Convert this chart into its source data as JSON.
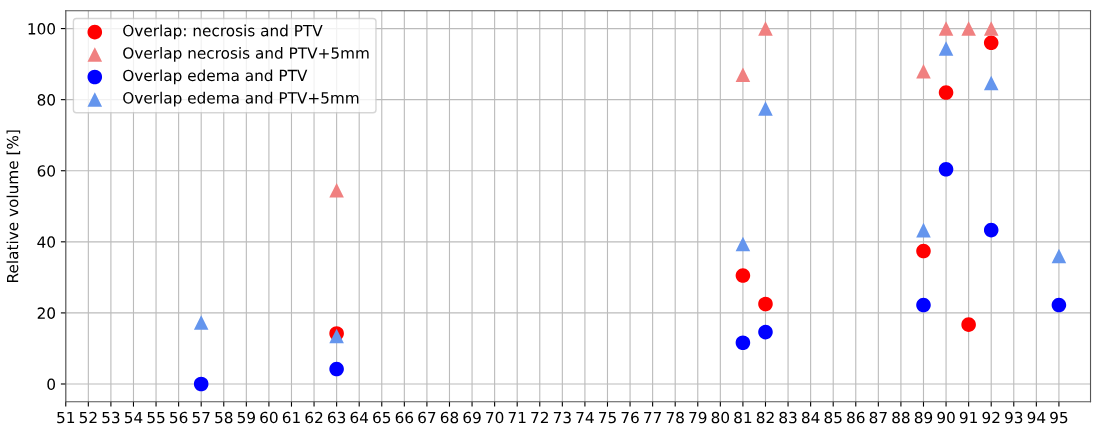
{
  "chart_data": {
    "type": "scatter",
    "ylabel": "Relative volume [%]",
    "xlim": [
      51,
      96.4
    ],
    "xticks": [
      51,
      52,
      53,
      54,
      55,
      56,
      57,
      58,
      59,
      60,
      61,
      62,
      63,
      64,
      65,
      66,
      67,
      68,
      69,
      70,
      71,
      72,
      73,
      74,
      75,
      76,
      77,
      78,
      79,
      80,
      81,
      82,
      83,
      84,
      85,
      86,
      87,
      88,
      89,
      90,
      91,
      92,
      93,
      94,
      95
    ],
    "ylim": [
      -5,
      105
    ],
    "yticks": [
      0,
      20,
      40,
      60,
      80,
      100
    ],
    "grid": true,
    "legend": "top left",
    "series": [
      {
        "name": "Overlap: necrosis and PTV",
        "color": "#ff0000",
        "marker": "circle",
        "x": [
          63,
          81,
          82,
          89,
          90,
          91,
          92
        ],
        "values": [
          14.2,
          30.5,
          22.5,
          37.4,
          82,
          16.7,
          96
        ]
      },
      {
        "name": "Overlap necrosis and PTV+5mm",
        "color": "#f08080",
        "marker": "triangle",
        "x": [
          63,
          81,
          82,
          89,
          90,
          91,
          92
        ],
        "values": [
          54.5,
          87,
          100,
          88,
          100,
          100,
          100
        ]
      },
      {
        "name": "Overlap edema and PTV",
        "color": "#0000ff",
        "marker": "circle",
        "x": [
          57,
          63,
          81,
          82,
          89,
          90,
          92,
          95
        ],
        "values": [
          0,
          4.2,
          11.6,
          14.6,
          22.2,
          60.4,
          43.3,
          22.2
        ]
      },
      {
        "name": "Overlap edema and PTV+5mm",
        "color": "#6495ed",
        "marker": "triangle",
        "x": [
          57,
          63,
          81,
          82,
          89,
          90,
          92,
          95
        ],
        "values": [
          17.3,
          13.5,
          39.4,
          77.5,
          43.3,
          94.4,
          84.7,
          36
        ]
      }
    ]
  }
}
